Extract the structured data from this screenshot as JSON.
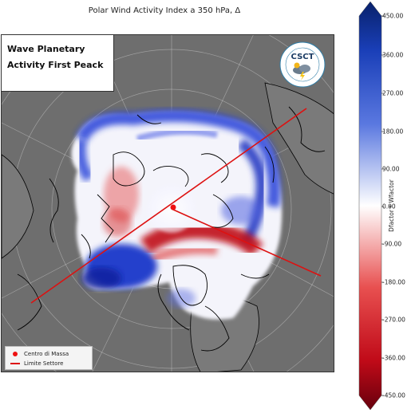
{
  "title": "Polar Wind Activity Index a 350 hPa, Δ",
  "subtitle_line1": "Wave Planetary",
  "subtitle_line2": "Activity First Peack",
  "logo": {
    "text": "CSCT",
    "ring_text": "CENTER FOR STUDY ON CLIMATE AND TELECONNECTION",
    "icon": "storm-cloud-icon"
  },
  "legend": {
    "center_label": "Centro di Massa",
    "sector_label": "Limite Settore",
    "center_color": "#ee1111",
    "sector_color": "#dd1111"
  },
  "colorbar": {
    "label": "Dfactor * Wfactor",
    "ticks": [
      "450.00",
      "360.00",
      "270.00",
      "180.00",
      "90.00",
      "0.00",
      "-90.00",
      "-180.00",
      "-270.00",
      "-360.00",
      "-450.00"
    ],
    "min": -450,
    "max": 450,
    "colors": {
      "high": "#08216b",
      "mid": "#ffffff",
      "low": "#67000d"
    }
  },
  "map": {
    "projection": "north-polar-stereographic",
    "ocean_color": "#6e6e6e",
    "coastline_color": "#000000"
  }
}
